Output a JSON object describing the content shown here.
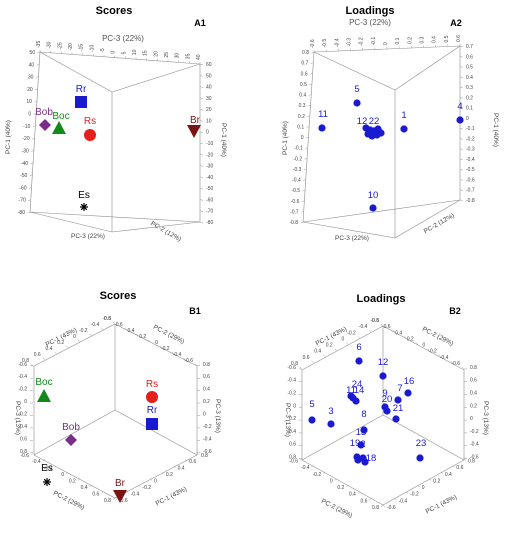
{
  "colors": {
    "blue": "#1a1ad2",
    "red": "#e51e1e",
    "darkred": "#7a1414",
    "green": "#108a18",
    "purple": "#7a2e8a",
    "black": "#000000"
  },
  "chart_data": [
    {
      "id": "A1",
      "type": "scatter",
      "title": "Scores",
      "axes": [
        "PC-3 (22%)",
        "PC-1 (40%)",
        "PC-2 (12%)"
      ],
      "points": [
        {
          "label": "Rr",
          "marker": "square",
          "color": "blue"
        },
        {
          "label": "Rs",
          "marker": "circle",
          "color": "red"
        },
        {
          "label": "Br",
          "marker": "triangle-down",
          "color": "darkred"
        },
        {
          "label": "Bob",
          "marker": "diamond",
          "color": "purple"
        },
        {
          "label": "Boc",
          "marker": "triangle-up",
          "color": "green"
        },
        {
          "label": "Es",
          "marker": "star",
          "color": "black"
        }
      ]
    },
    {
      "id": "A2",
      "type": "scatter",
      "title": "Loadings",
      "axes": [
        "PC-3 (22%)",
        "PC-1 (40%)",
        "PC-2 (12%)"
      ],
      "labels": [
        "5",
        "11",
        "12",
        "22",
        "1",
        "4",
        "10"
      ]
    },
    {
      "id": "B1",
      "type": "scatter",
      "title": "Scores",
      "axes": [
        "PC-1 (43%)",
        "PC-2 (29%)",
        "PC-3 (13%)"
      ],
      "points": [
        {
          "label": "Boc",
          "marker": "triangle-up",
          "color": "green"
        },
        {
          "label": "Bob",
          "marker": "diamond",
          "color": "purple"
        },
        {
          "label": "Rs",
          "marker": "circle",
          "color": "red"
        },
        {
          "label": "Rr",
          "marker": "square",
          "color": "blue"
        },
        {
          "label": "Es",
          "marker": "star",
          "color": "black"
        },
        {
          "label": "Br",
          "marker": "triangle-down",
          "color": "darkred"
        }
      ]
    },
    {
      "id": "B2",
      "type": "scatter",
      "title": "Loadings",
      "axes": [
        "PC-1 (43%)",
        "PC-2 (29%)",
        "PC-3 (13%)"
      ],
      "labels": [
        "6",
        "12",
        "24",
        "11",
        "14",
        "9",
        "16",
        "7",
        "20",
        "21",
        "5",
        "3",
        "8",
        "13",
        "19",
        "2",
        "18",
        "23"
      ]
    }
  ],
  "ticks": {
    "a1_top": [
      "-35",
      "-30",
      "-25",
      "-20",
      "-15",
      "-10",
      "-5",
      "0",
      "5",
      "10",
      "15",
      "20",
      "25",
      "30",
      "35",
      "40"
    ],
    "a1_right": [
      "60",
      "50",
      "40",
      "30",
      "20",
      "10",
      "0",
      "-10",
      "-20",
      "-30",
      "-40",
      "-50",
      "-60",
      "-70",
      "-80"
    ],
    "a1_left": [
      "50",
      "40",
      "30",
      "20",
      "10",
      "0",
      "-10",
      "-20",
      "-30",
      "-40",
      "-50",
      "-60",
      "-70",
      "-80"
    ],
    "a2_top": [
      "-0.6",
      "-0.5",
      "-0.4",
      "-0.3",
      "-0.2",
      "-0.1",
      "0",
      "0.1",
      "0.2",
      "0.3",
      "0.4",
      "0.5",
      "0.6"
    ],
    "a2_right": [
      "0.7",
      "0.6",
      "0.5",
      "0.4",
      "0.3",
      "0.2",
      "0.1",
      "0",
      "-0.1",
      "-0.2",
      "-0.3",
      "-0.4",
      "-0.5",
      "-0.6",
      "-0.7",
      "-0.8"
    ],
    "a2_left": [
      "0.8",
      "0.7",
      "0.6",
      "0.5",
      "0.4",
      "0.3",
      "0.2",
      "0.1",
      "0",
      "-0.1",
      "-0.2",
      "-0.3",
      "-0.4",
      "-0.5",
      "-0.6",
      "-0.7",
      "-0.8"
    ],
    "b_axis": [
      "0.8",
      "0.6",
      "0.4",
      "0.2",
      "0",
      "-0.2",
      "-0.4",
      "-0.6"
    ]
  }
}
